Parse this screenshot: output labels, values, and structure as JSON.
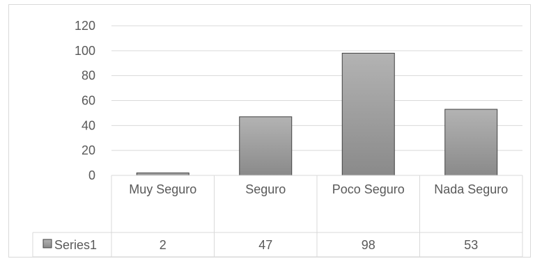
{
  "chart_data": {
    "type": "bar",
    "categories": [
      "Muy Seguro",
      "Seguro",
      "Poco Seguro",
      "Nada Seguro"
    ],
    "series": [
      {
        "name": "Series1",
        "values": [
          2,
          47,
          98,
          53
        ]
      }
    ],
    "title": "",
    "xlabel": "",
    "ylabel": "",
    "ylim": [
      0,
      120
    ],
    "yticks": [
      "0",
      "20",
      "40",
      "60",
      "80",
      "100",
      "120"
    ],
    "grid": true,
    "legend": "data-table",
    "data_table": true,
    "colors": {
      "bar_fill_top": "#b3b3b3",
      "bar_fill_bottom": "#8a8a8a",
      "bar_stroke": "#404040",
      "gridline": "#d9d9d9",
      "text": "#595959"
    }
  }
}
